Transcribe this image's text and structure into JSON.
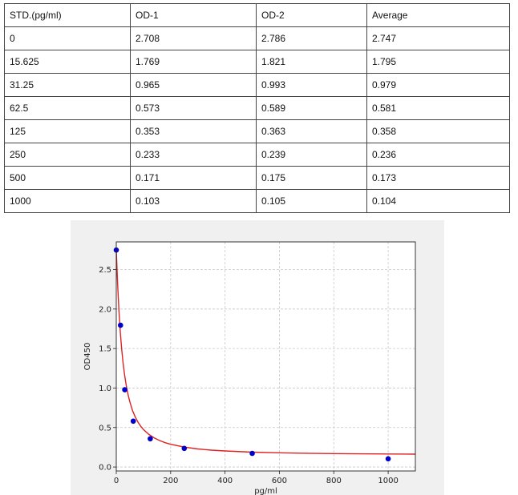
{
  "table": {
    "headers": [
      "STD.(pg/ml)",
      "OD-1",
      "OD-2",
      "Average"
    ],
    "rows": [
      [
        "0",
        "2.708",
        "2.786",
        "2.747"
      ],
      [
        "15.625",
        "1.769",
        "1.821",
        "1.795"
      ],
      [
        "31.25",
        "0.965",
        "0.993",
        "0.979"
      ],
      [
        "62.5",
        "0.573",
        "0.589",
        "0.581"
      ],
      [
        "125",
        "0.353",
        "0.363",
        "0.358"
      ],
      [
        "250",
        "0.233",
        "0.239",
        "0.236"
      ],
      [
        "500",
        "0.171",
        "0.175",
        "0.173"
      ],
      [
        "1000",
        "0.103",
        "0.105",
        "0.104"
      ]
    ]
  },
  "chart_data": {
    "type": "scatter",
    "title": "",
    "xlabel": "pg/ml",
    "ylabel": "OD450",
    "xlim": [
      0,
      1100
    ],
    "ylim": [
      -0.05,
      2.85
    ],
    "xticks": [
      0,
      200,
      400,
      600,
      800,
      1000
    ],
    "yticks": [
      0.0,
      0.5,
      1.0,
      1.5,
      2.0,
      2.5
    ],
    "ytick_labels": [
      "0.0",
      "0.5",
      "1.0",
      "1.5",
      "2.0",
      "2.5"
    ],
    "grid": true,
    "series": [
      {
        "type": "scatter",
        "color": "#0000cc",
        "x": [
          0,
          15.625,
          31.25,
          62.5,
          125,
          250,
          500,
          1000
        ],
        "y": [
          2.747,
          1.795,
          0.979,
          0.581,
          0.358,
          0.236,
          0.173,
          0.104
        ]
      },
      {
        "type": "line",
        "color": "#dd2222",
        "x": [
          0,
          5,
          10,
          15,
          20,
          25,
          30,
          35,
          40,
          45,
          50,
          60,
          70,
          80,
          90,
          100,
          120,
          140,
          160,
          180,
          200,
          250,
          300,
          350,
          400,
          500,
          600,
          700,
          800,
          900,
          1000,
          1100
        ],
        "y": [
          2.747,
          2.314,
          1.966,
          1.699,
          1.486,
          1.317,
          1.179,
          1.065,
          0.97,
          0.891,
          0.823,
          0.714,
          0.632,
          0.568,
          0.516,
          0.474,
          0.412,
          0.368,
          0.334,
          0.308,
          0.288,
          0.252,
          0.229,
          0.214,
          0.203,
          0.188,
          0.18,
          0.174,
          0.17,
          0.167,
          0.165,
          0.163
        ]
      }
    ]
  }
}
